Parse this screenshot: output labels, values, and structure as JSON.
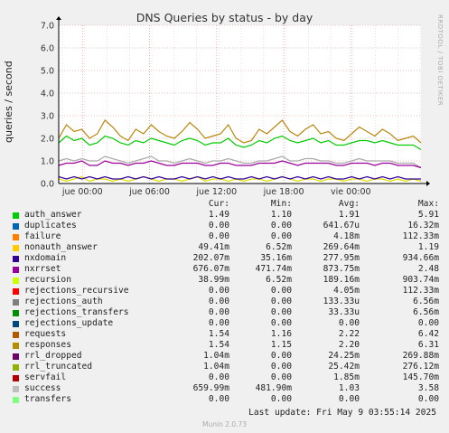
{
  "chart_data": {
    "type": "line",
    "title": "DNS Queries by status - by day",
    "ylabel": "queries / second",
    "side_text": "RRDTOOL / TOBI OETIKER",
    "ylim": [
      0,
      7
    ],
    "yticks": [
      "0.0",
      "1.0",
      "2.0",
      "3.0",
      "4.0",
      "5.0",
      "6.0",
      "7.0"
    ],
    "xticks": [
      "jue 00:00",
      "jue 06:00",
      "jue 12:00",
      "jue 18:00",
      "vie 00:00"
    ],
    "grid": true,
    "series": [
      {
        "name": "responses",
        "color": "#b8860b",
        "values": [
          2.0,
          2.6,
          2.3,
          2.4,
          2.0,
          2.2,
          2.8,
          2.5,
          2.1,
          1.9,
          2.4,
          2.2,
          2.6,
          2.3,
          2.1,
          2.0,
          2.3,
          2.7,
          2.4,
          2.0,
          2.1,
          2.2,
          2.6,
          2.0,
          1.8,
          1.9,
          2.4,
          2.2,
          2.5,
          2.8,
          2.3,
          2.1,
          2.4,
          2.6,
          2.2,
          2.3,
          2.0,
          1.9,
          2.2,
          2.5,
          2.3,
          2.1,
          2.4,
          2.2,
          1.9,
          2.0,
          2.1,
          1.8
        ]
      },
      {
        "name": "auth_answer",
        "color": "#00cc00",
        "values": [
          1.8,
          2.1,
          1.9,
          2.0,
          1.7,
          1.8,
          2.1,
          2.0,
          1.8,
          1.7,
          1.9,
          1.8,
          2.0,
          1.9,
          1.8,
          1.7,
          1.9,
          2.0,
          1.9,
          1.7,
          1.8,
          1.8,
          2.0,
          1.7,
          1.6,
          1.7,
          1.9,
          1.8,
          2.0,
          2.1,
          1.9,
          1.8,
          1.9,
          2.0,
          1.8,
          1.9,
          1.7,
          1.7,
          1.8,
          1.9,
          1.9,
          1.8,
          1.9,
          1.8,
          1.7,
          1.7,
          1.7,
          1.5
        ]
      },
      {
        "name": "success",
        "color": "#aaaaaa",
        "values": [
          1.0,
          1.1,
          1.0,
          1.1,
          1.0,
          1.0,
          1.2,
          1.1,
          1.0,
          0.9,
          1.0,
          1.1,
          1.2,
          1.0,
          1.0,
          0.9,
          1.0,
          1.1,
          1.0,
          0.9,
          1.0,
          1.0,
          1.1,
          1.0,
          0.9,
          0.9,
          1.0,
          1.0,
          1.1,
          1.2,
          1.0,
          1.0,
          1.1,
          1.1,
          1.0,
          1.0,
          0.9,
          0.9,
          1.0,
          1.1,
          1.0,
          1.0,
          1.0,
          1.0,
          0.9,
          0.9,
          0.9,
          0.7
        ]
      },
      {
        "name": "nxrrset",
        "color": "#990099",
        "values": [
          0.8,
          0.9,
          0.9,
          1.0,
          0.8,
          0.8,
          1.0,
          0.9,
          0.9,
          0.8,
          0.9,
          0.9,
          1.0,
          0.9,
          0.8,
          0.8,
          0.9,
          0.9,
          0.9,
          0.8,
          0.8,
          0.9,
          0.9,
          0.8,
          0.8,
          0.8,
          0.9,
          0.9,
          0.9,
          1.0,
          0.9,
          0.8,
          0.9,
          0.9,
          0.9,
          0.9,
          0.8,
          0.8,
          0.9,
          0.9,
          0.9,
          0.8,
          0.9,
          0.9,
          0.8,
          0.8,
          0.8,
          0.7
        ]
      },
      {
        "name": "recursion",
        "color": "#dddd00",
        "values": [
          0.2,
          0.1,
          0.2,
          0.3,
          0.1,
          0.2,
          0.2,
          0.1,
          0.2,
          0.1,
          0.2,
          0.3,
          0.2,
          0.1,
          0.2,
          0.2,
          0.1,
          0.2,
          0.3,
          0.1,
          0.2,
          0.2,
          0.1,
          0.2,
          0.1,
          0.2,
          0.2,
          0.1,
          0.2,
          0.3,
          0.2,
          0.1,
          0.2,
          0.2,
          0.1,
          0.2,
          0.2,
          0.1,
          0.2,
          0.2,
          0.1,
          0.2,
          0.2,
          0.1,
          0.2,
          0.1,
          0.2,
          0.1
        ]
      },
      {
        "name": "nxdomain",
        "color": "#330099",
        "values": [
          0.3,
          0.2,
          0.3,
          0.2,
          0.3,
          0.2,
          0.3,
          0.2,
          0.2,
          0.3,
          0.2,
          0.3,
          0.2,
          0.3,
          0.2,
          0.2,
          0.3,
          0.2,
          0.3,
          0.2,
          0.3,
          0.2,
          0.3,
          0.2,
          0.2,
          0.3,
          0.2,
          0.3,
          0.2,
          0.3,
          0.2,
          0.3,
          0.2,
          0.3,
          0.2,
          0.3,
          0.2,
          0.2,
          0.3,
          0.2,
          0.3,
          0.2,
          0.3,
          0.2,
          0.3,
          0.2,
          0.2,
          0.2
        ]
      }
    ]
  },
  "legend": {
    "headers": [
      "Cur:",
      "Min:",
      "Avg:",
      "Max:"
    ],
    "rows": [
      {
        "name": "auth_answer",
        "color": "#00cc00",
        "cur": "1.49",
        "min": "1.10",
        "avg": "1.91",
        "max": "5.91"
      },
      {
        "name": "duplicates",
        "color": "#0066b3",
        "cur": "0.00",
        "min": "0.00",
        "avg": "641.67u",
        "max": "16.32m"
      },
      {
        "name": "failure",
        "color": "#ff8000",
        "cur": "0.00",
        "min": "0.00",
        "avg": "4.18m",
        "max": "112.33m"
      },
      {
        "name": "nonauth_answer",
        "color": "#ffcc00",
        "cur": "49.41m",
        "min": "6.52m",
        "avg": "269.64m",
        "max": "1.19"
      },
      {
        "name": "nxdomain",
        "color": "#330099",
        "cur": "202.07m",
        "min": "35.16m",
        "avg": "277.95m",
        "max": "934.66m"
      },
      {
        "name": "nxrrset",
        "color": "#990099",
        "cur": "676.07m",
        "min": "471.74m",
        "avg": "873.75m",
        "max": "2.48"
      },
      {
        "name": "recursion",
        "color": "#ccff00",
        "cur": "38.99m",
        "min": "6.52m",
        "avg": "189.16m",
        "max": "903.74m"
      },
      {
        "name": "rejections_recursive",
        "color": "#ff0000",
        "cur": "0.00",
        "min": "0.00",
        "avg": "4.05m",
        "max": "112.33m"
      },
      {
        "name": "rejections_auth",
        "color": "#808080",
        "cur": "0.00",
        "min": "0.00",
        "avg": "133.33u",
        "max": "6.56m"
      },
      {
        "name": "rejections_transfers",
        "color": "#008f00",
        "cur": "0.00",
        "min": "0.00",
        "avg": "33.33u",
        "max": "6.56m"
      },
      {
        "name": "rejections_update",
        "color": "#00487d",
        "cur": "0.00",
        "min": "0.00",
        "avg": "0.00",
        "max": "0.00"
      },
      {
        "name": "requests",
        "color": "#b35a00",
        "cur": "1.54",
        "min": "1.16",
        "avg": "2.22",
        "max": "6.42"
      },
      {
        "name": "responses",
        "color": "#b38f00",
        "cur": "1.54",
        "min": "1.15",
        "avg": "2.20",
        "max": "6.31"
      },
      {
        "name": "rrl_dropped",
        "color": "#6b006b",
        "cur": "1.04m",
        "min": "0.00",
        "avg": "24.25m",
        "max": "269.88m"
      },
      {
        "name": "rrl_truncated",
        "color": "#8fb300",
        "cur": "1.04m",
        "min": "0.00",
        "avg": "25.42m",
        "max": "276.12m"
      },
      {
        "name": "servfail",
        "color": "#b30000",
        "cur": "0.00",
        "min": "0.00",
        "avg": "1.85m",
        "max": "145.70m"
      },
      {
        "name": "success",
        "color": "#bebebe",
        "cur": "659.99m",
        "min": "481.90m",
        "avg": "1.03",
        "max": "3.58"
      },
      {
        "name": "transfers",
        "color": "#80ff80",
        "cur": "0.00",
        "min": "0.00",
        "avg": "0.00",
        "max": "0.00"
      }
    ]
  },
  "last_update": "Last update: Fri May  9 03:55:14 2025",
  "footer": "Munin 2.0.73"
}
